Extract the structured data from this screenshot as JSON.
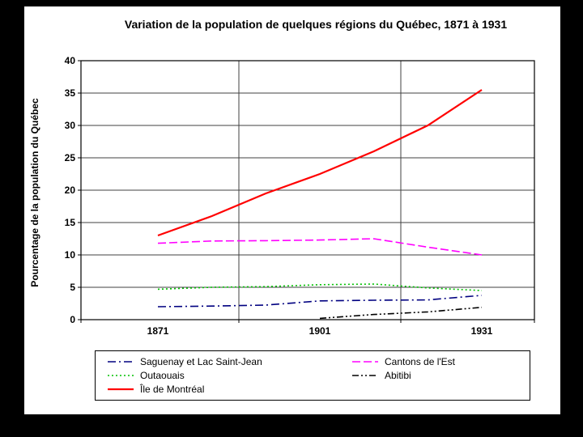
{
  "colors": {
    "frame_background": "#000000",
    "slide_background": "#FFFFFF",
    "axis_and_text": "#000000",
    "gridline": "#404040"
  },
  "chart_data": {
    "type": "line",
    "title": "Variation de la population de quelques régions du Québec, 1871 à 1931",
    "ylabel": "Pourcentage de la population du Québec",
    "xlabel": "",
    "ylim": [
      0,
      40
    ],
    "y_ticks": [
      0,
      5,
      10,
      15,
      20,
      25,
      30,
      35,
      40
    ],
    "x": [
      1871,
      1881,
      1891,
      1901,
      1911,
      1921,
      1931
    ],
    "x_tick_labels": [
      "1871",
      "1901",
      "1931"
    ],
    "x_tick_indices": [
      0,
      3,
      6
    ],
    "grid": "on",
    "legend_position": "bottom",
    "series": [
      {
        "name": "Saguenay et Lac Saint-Jean",
        "color": "#000080",
        "dash": "dash-dot",
        "width": 1.6,
        "values": [
          2.0,
          2.1,
          2.25,
          2.9,
          3.0,
          3.05,
          3.75
        ]
      },
      {
        "name": "Cantons de l'Est",
        "color": "#FF00FF",
        "dash": "dashed",
        "width": 1.6,
        "values": [
          11.8,
          12.15,
          12.2,
          12.3,
          12.5,
          11.2,
          10.0
        ]
      },
      {
        "name": "Outaouais",
        "color": "#00C000",
        "dash": "dotted",
        "width": 1.6,
        "values": [
          4.7,
          5.0,
          5.1,
          5.4,
          5.5,
          4.9,
          4.5
        ]
      },
      {
        "name": "Abitibi",
        "color": "#000000",
        "dash": "dash-dot-dot",
        "width": 1.6,
        "values": [
          null,
          null,
          null,
          0.2,
          0.8,
          1.2,
          1.9
        ]
      },
      {
        "name": "Île de Montréal",
        "color": "#FF0000",
        "dash": "solid",
        "width": 2.2,
        "values": [
          13.0,
          16.0,
          19.5,
          22.5,
          26.0,
          30.0,
          35.5
        ]
      }
    ]
  }
}
